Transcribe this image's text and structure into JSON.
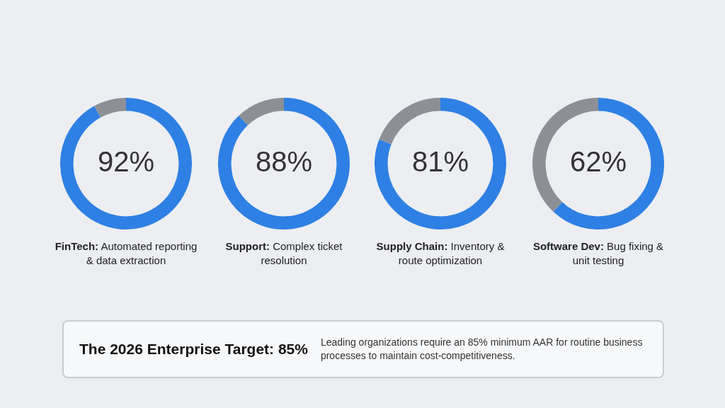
{
  "chart_data": [
    {
      "type": "donut",
      "title": "FinTech: Automated reporting & data extraction",
      "values": [
        92,
        8
      ],
      "colors": [
        "#2f80e4",
        "#8c9096"
      ],
      "value_labels": [
        "92%",
        null
      ]
    },
    {
      "type": "donut",
      "title": "Support: Complex ticket resolution",
      "values": [
        88,
        12
      ],
      "colors": [
        "#2f80e4",
        "#8c9096"
      ],
      "value_labels": [
        "88%",
        null
      ]
    },
    {
      "type": "donut",
      "title": "Supply Chain: Inventory & route optimization",
      "values": [
        81,
        19
      ],
      "colors": [
        "#2f80e4",
        "#8c9096"
      ],
      "value_labels": [
        "81%",
        null
      ]
    },
    {
      "type": "donut",
      "title": "Software Dev: Bug fixing & unit testing",
      "values": [
        62,
        38
      ],
      "colors": [
        "#2f80e4",
        "#8c9096"
      ],
      "value_labels": [
        "62%",
        null
      ]
    },
    {
      "type": "other",
      "title": "The 2026 Enterprise Target: 85%",
      "annotations": [
        "Leading organizations require an 85% minimum AAR for routine business processes to maintain cost-competitiveness."
      ]
    }
  ]
}
